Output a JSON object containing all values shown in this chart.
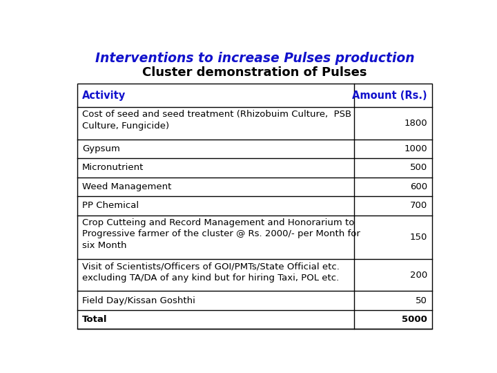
{
  "title1": "Interventions to increase Pulses production",
  "title2": "Cluster demonstration of Pulses",
  "title1_color": "#1111CC",
  "title2_color": "#000000",
  "header": [
    "Activity",
    "Amount (Rs.)"
  ],
  "header_color": "#1111CC",
  "rows": [
    [
      "Cost of seed and seed treatment (Rhizobuim Culture,  PSB\nCulture, Fungicide)",
      "1800"
    ],
    [
      "Gypsum",
      "1000"
    ],
    [
      "Micronutrient",
      "500"
    ],
    [
      "Weed Management",
      "600"
    ],
    [
      "PP Chemical",
      "700"
    ],
    [
      "Crop Cutteing and Record Management and Honorarium to\nProgressive farmer of the cluster @ Rs. 2000/- per Month for\nsix Month",
      "150"
    ],
    [
      "Visit of Scientists/Officers of GOI/PMTs/State Official etc.\nexcluding TA/DA of any kind but for hiring Taxi, POL etc.",
      "200"
    ],
    [
      "Field Day/Kissan Goshthi",
      "50"
    ],
    [
      "Total",
      "5000"
    ]
  ],
  "col_split": 0.78,
  "bg_color": "#ffffff",
  "border_color": "#000000",
  "font_size": 9.5,
  "header_font_size": 10.5,
  "title1_fontsize": 13.5,
  "title2_fontsize": 13.0
}
